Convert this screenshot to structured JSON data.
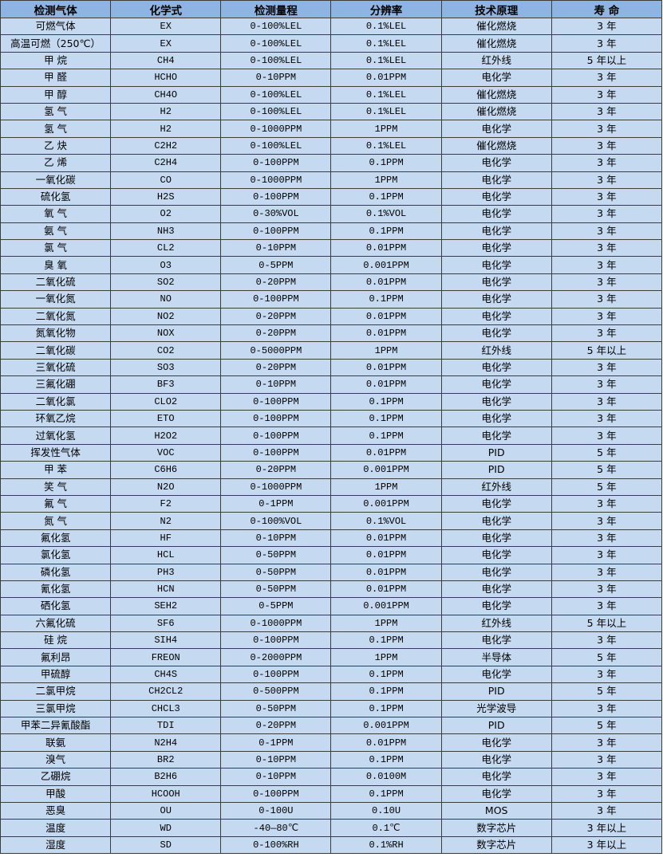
{
  "table": {
    "headers": [
      "检测气体",
      "化学式",
      "检测量程",
      "分辨率",
      "技术原理",
      "寿 命"
    ],
    "rows": [
      [
        "可燃气体",
        "EX",
        "0-100%LEL",
        "0.1%LEL",
        "催化燃烧",
        "3 年"
      ],
      [
        "高温可燃（250℃）",
        "EX",
        "0-100%LEL",
        "0.1%LEL",
        "催化燃烧",
        "3 年"
      ],
      [
        "甲 烷",
        "CH4",
        "0-100%LEL",
        "0.1%LEL",
        "红外线",
        "5 年以上"
      ],
      [
        "甲 醛",
        "HCHO",
        "0-10PPM",
        "0.01PPM",
        "电化学",
        "3 年"
      ],
      [
        "甲 醇",
        "CH4O",
        "0-100%LEL",
        "0.1%LEL",
        "催化燃烧",
        "3 年"
      ],
      [
        "氢 气",
        "H2",
        "0-100%LEL",
        "0.1%LEL",
        "催化燃烧",
        "3 年"
      ],
      [
        "氢 气",
        "H2",
        "0-1000PPM",
        "1PPM",
        "电化学",
        "3 年"
      ],
      [
        "乙 炔",
        "C2H2",
        "0-100%LEL",
        "0.1%LEL",
        "催化燃烧",
        "3 年"
      ],
      [
        "乙 烯",
        "C2H4",
        "0-100PPM",
        "0.1PPM",
        "电化学",
        "3 年"
      ],
      [
        "一氧化碳",
        "CO",
        "0-1000PPM",
        "1PPM",
        "电化学",
        "3 年"
      ],
      [
        "硫化氢",
        "H2S",
        "0-100PPM",
        "0.1PPM",
        "电化学",
        "3 年"
      ],
      [
        "氧 气",
        "O2",
        "0-30%VOL",
        "0.1%VOL",
        "电化学",
        "3 年"
      ],
      [
        "氨 气",
        "NH3",
        "0-100PPM",
        "0.1PPM",
        "电化学",
        "3 年"
      ],
      [
        "氯 气",
        "CL2",
        "0-10PPM",
        "0.01PPM",
        "电化学",
        "3 年"
      ],
      [
        "臭 氧",
        "O3",
        "0-5PPM",
        "0.001PPM",
        "电化学",
        "3 年"
      ],
      [
        "二氧化硫",
        "SO2",
        "0-20PPM",
        "0.01PPM",
        "电化学",
        "3 年"
      ],
      [
        "一氧化氮",
        "NO",
        "0-100PPM",
        "0.1PPM",
        "电化学",
        "3 年"
      ],
      [
        "二氧化氮",
        "NO2",
        "0-20PPM",
        "0.01PPM",
        "电化学",
        "3 年"
      ],
      [
        "氮氧化物",
        "NOX",
        "0-20PPM",
        "0.01PPM",
        "电化学",
        "3 年"
      ],
      [
        "二氧化碳",
        "CO2",
        "0-5000PPM",
        "1PPM",
        "红外线",
        "5 年以上"
      ],
      [
        "三氧化硫",
        "SO3",
        "0-20PPM",
        "0.01PPM",
        "电化学",
        "3 年"
      ],
      [
        "三氟化硼",
        "BF3",
        "0-10PPM",
        "0.01PPM",
        "电化学",
        "3 年"
      ],
      [
        "二氧化氯",
        "CLO2",
        "0-100PPM",
        "0.1PPM",
        "电化学",
        "3 年"
      ],
      [
        "环氧乙烷",
        "ETO",
        "0-100PPM",
        "0.1PPM",
        "电化学",
        "3 年"
      ],
      [
        "过氧化氢",
        "H2O2",
        "0-100PPM",
        "0.1PPM",
        "电化学",
        "3 年"
      ],
      [
        "挥发性气体",
        "VOC",
        "0-100PPM",
        "0.01PPM",
        "PID",
        "5 年"
      ],
      [
        "甲 苯",
        "C6H6",
        "0-20PPM",
        "0.001PPM",
        "PID",
        "5 年"
      ],
      [
        "笑 气",
        "N2O",
        "0-1000PPM",
        "1PPM",
        "红外线",
        "5 年"
      ],
      [
        "氟 气",
        "F2",
        "0-1PPM",
        "0.001PPM",
        "电化学",
        "3 年"
      ],
      [
        "氮 气",
        "N2",
        "0-100%VOL",
        "0.1%VOL",
        "电化学",
        "3 年"
      ],
      [
        "氟化氢",
        "HF",
        "0-10PPM",
        "0.01PPM",
        "电化学",
        "3 年"
      ],
      [
        "氯化氢",
        "HCL",
        "0-50PPM",
        "0.01PPM",
        "电化学",
        "3 年"
      ],
      [
        "磷化氢",
        "PH3",
        "0-50PPM",
        "0.01PPM",
        "电化学",
        "3 年"
      ],
      [
        "氰化氢",
        "HCN",
        "0-50PPM",
        "0.01PPM",
        "电化学",
        "3 年"
      ],
      [
        "硒化氢",
        "SEH2",
        "0-5PPM",
        "0.001PPM",
        "电化学",
        "3 年"
      ],
      [
        "六氟化硫",
        "SF6",
        "0-1000PPM",
        "1PPM",
        "红外线",
        "5 年以上"
      ],
      [
        "硅 烷",
        "SIH4",
        "0-100PPM",
        "0.1PPM",
        "电化学",
        "3 年"
      ],
      [
        "氟利昂",
        "FREON",
        "0-2000PPM",
        "1PPM",
        "半导体",
        "5 年"
      ],
      [
        "甲硫醇",
        "CH4S",
        "0-100PPM",
        "0.1PPM",
        "电化学",
        "3 年"
      ],
      [
        "二氯甲烷",
        "CH2CL2",
        "0-500PPM",
        "0.1PPM",
        "PID",
        "5 年"
      ],
      [
        "三氯甲烷",
        "CHCL3",
        "0-50PPM",
        "0.1PPM",
        "光学波导",
        "3 年"
      ],
      [
        "甲苯二异氰酸酯",
        "TDI",
        "0-20PPM",
        "0.001PPM",
        "PID",
        "5 年"
      ],
      [
        "联氨",
        "N2H4",
        "0-1PPM",
        "0.01PPM",
        "电化学",
        "3 年"
      ],
      [
        "溴气",
        "BR2",
        "0-10PPM",
        "0.1PPM",
        "电化学",
        "3 年"
      ],
      [
        "乙硼烷",
        "B2H6",
        "0-10PPM",
        "0.0100M",
        "电化学",
        "3 年"
      ],
      [
        "甲酸",
        "HCOOH",
        "0-100PPM",
        "0.1PPM",
        "电化学",
        "3 年"
      ],
      [
        "恶臭",
        "OU",
        "0-100U",
        "0.10U",
        "MOS",
        "3 年"
      ],
      [
        "温度",
        "WD",
        "-40—80℃",
        "0.1℃",
        "数字芯片",
        "3 年以上"
      ],
      [
        "湿度",
        "SD",
        "0-100%RH",
        "0.1%RH",
        "数字芯片",
        "3 年以上"
      ]
    ]
  },
  "colors": {
    "header_bg": "#8db4e2",
    "cell_bg": "#c5d9f1",
    "border": "#3c3c3c"
  }
}
